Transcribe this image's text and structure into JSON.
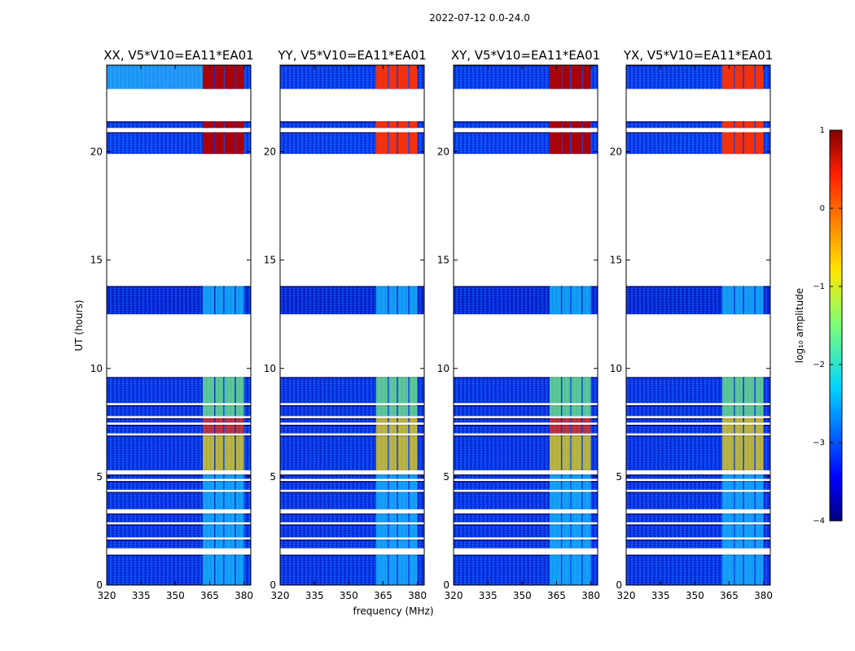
{
  "figure": {
    "suptitle": "2022-07-12 0.0-24.0",
    "xlabel": "frequency (MHz)",
    "ylabel": "UT (hours)"
  },
  "chart_data": {
    "type": "heatmap",
    "suptitle": "2022-07-12 0.0-24.0",
    "xlabel": "frequency (MHz)",
    "ylabel": "UT (hours)",
    "xlim": [
      320,
      383
    ],
    "ylim": [
      0,
      24
    ],
    "xticks": [
      320,
      335,
      350,
      365,
      380
    ],
    "yticks": [
      0,
      5,
      10,
      15,
      20
    ],
    "panels": [
      {
        "title": "XX, V5*V10=EA11*EA01",
        "polarization": "XX",
        "baseline": "V5*V10=EA11*EA01",
        "show_ylabel": true
      },
      {
        "title": "YY, V5*V10=EA11*EA01",
        "polarization": "YY",
        "baseline": "V5*V10=EA11*EA01",
        "show_ylabel": false
      },
      {
        "title": "XY, V5*V10=EA11*EA01",
        "polarization": "XY",
        "baseline": "V5*V10=EA11*EA01",
        "show_ylabel": false
      },
      {
        "title": "YX, V5*V10=EA11*EA01",
        "polarization": "YX",
        "baseline": "V5*V10=EA11*EA01",
        "show_ylabel": false
      }
    ],
    "data_segments_ut": [
      [
        0.0,
        1.4
      ],
      [
        1.7,
        2.1
      ],
      [
        2.2,
        2.8
      ],
      [
        2.9,
        3.3
      ],
      [
        3.5,
        4.3
      ],
      [
        4.4,
        4.8
      ],
      [
        4.9,
        5.1
      ],
      [
        5.3,
        6.9
      ],
      [
        7.0,
        7.4
      ],
      [
        7.5,
        7.7
      ],
      [
        7.8,
        8.3
      ],
      [
        8.4,
        9.6
      ],
      [
        12.5,
        13.8
      ],
      [
        19.9,
        20.9
      ],
      [
        21.1,
        21.4
      ],
      [
        22.9,
        24.0
      ]
    ],
    "rfi_bands_mhz": [
      [
        362,
        367
      ],
      [
        367.5,
        371
      ],
      [
        371.5,
        376
      ],
      [
        376.5,
        380
      ]
    ],
    "colorbar": {
      "label": "log₁₀ amplitude",
      "vmin": -4,
      "vmax": 1,
      "ticks": [
        -4,
        -3,
        -2,
        -1,
        0,
        1
      ],
      "colormap": "jet"
    }
  }
}
